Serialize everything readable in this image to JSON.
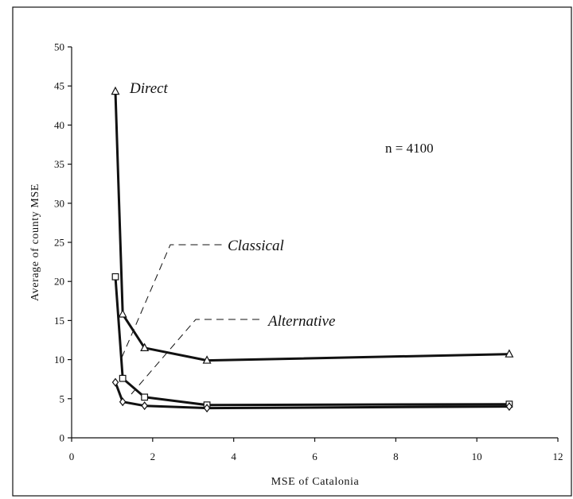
{
  "chart_data": {
    "type": "line",
    "xlabel": "MSE of Catalonia",
    "ylabel": "Average of county MSE",
    "xlim": [
      0,
      12
    ],
    "ylim": [
      0,
      50
    ],
    "x_ticks": [
      0,
      2,
      4,
      6,
      8,
      10,
      12
    ],
    "y_ticks": [
      0,
      5,
      10,
      15,
      20,
      25,
      30,
      35,
      40,
      45,
      50
    ],
    "grid": false,
    "annotation": "n = 4100",
    "series": [
      {
        "name": "Direct",
        "marker": "triangle",
        "x": [
          1.08,
          1.26,
          1.8,
          3.34,
          10.8
        ],
        "y": [
          44.3,
          15.8,
          11.5,
          9.9,
          10.7
        ]
      },
      {
        "name": "Classical",
        "marker": "square",
        "x": [
          1.08,
          1.26,
          1.8,
          3.34,
          10.8
        ],
        "y": [
          20.6,
          7.6,
          5.2,
          4.2,
          4.3
        ]
      },
      {
        "name": "Alternative",
        "marker": "diamond",
        "x": [
          1.08,
          1.26,
          1.8,
          3.34,
          10.8
        ],
        "y": [
          7.1,
          4.6,
          4.1,
          3.8,
          4.0
        ]
      }
    ]
  }
}
